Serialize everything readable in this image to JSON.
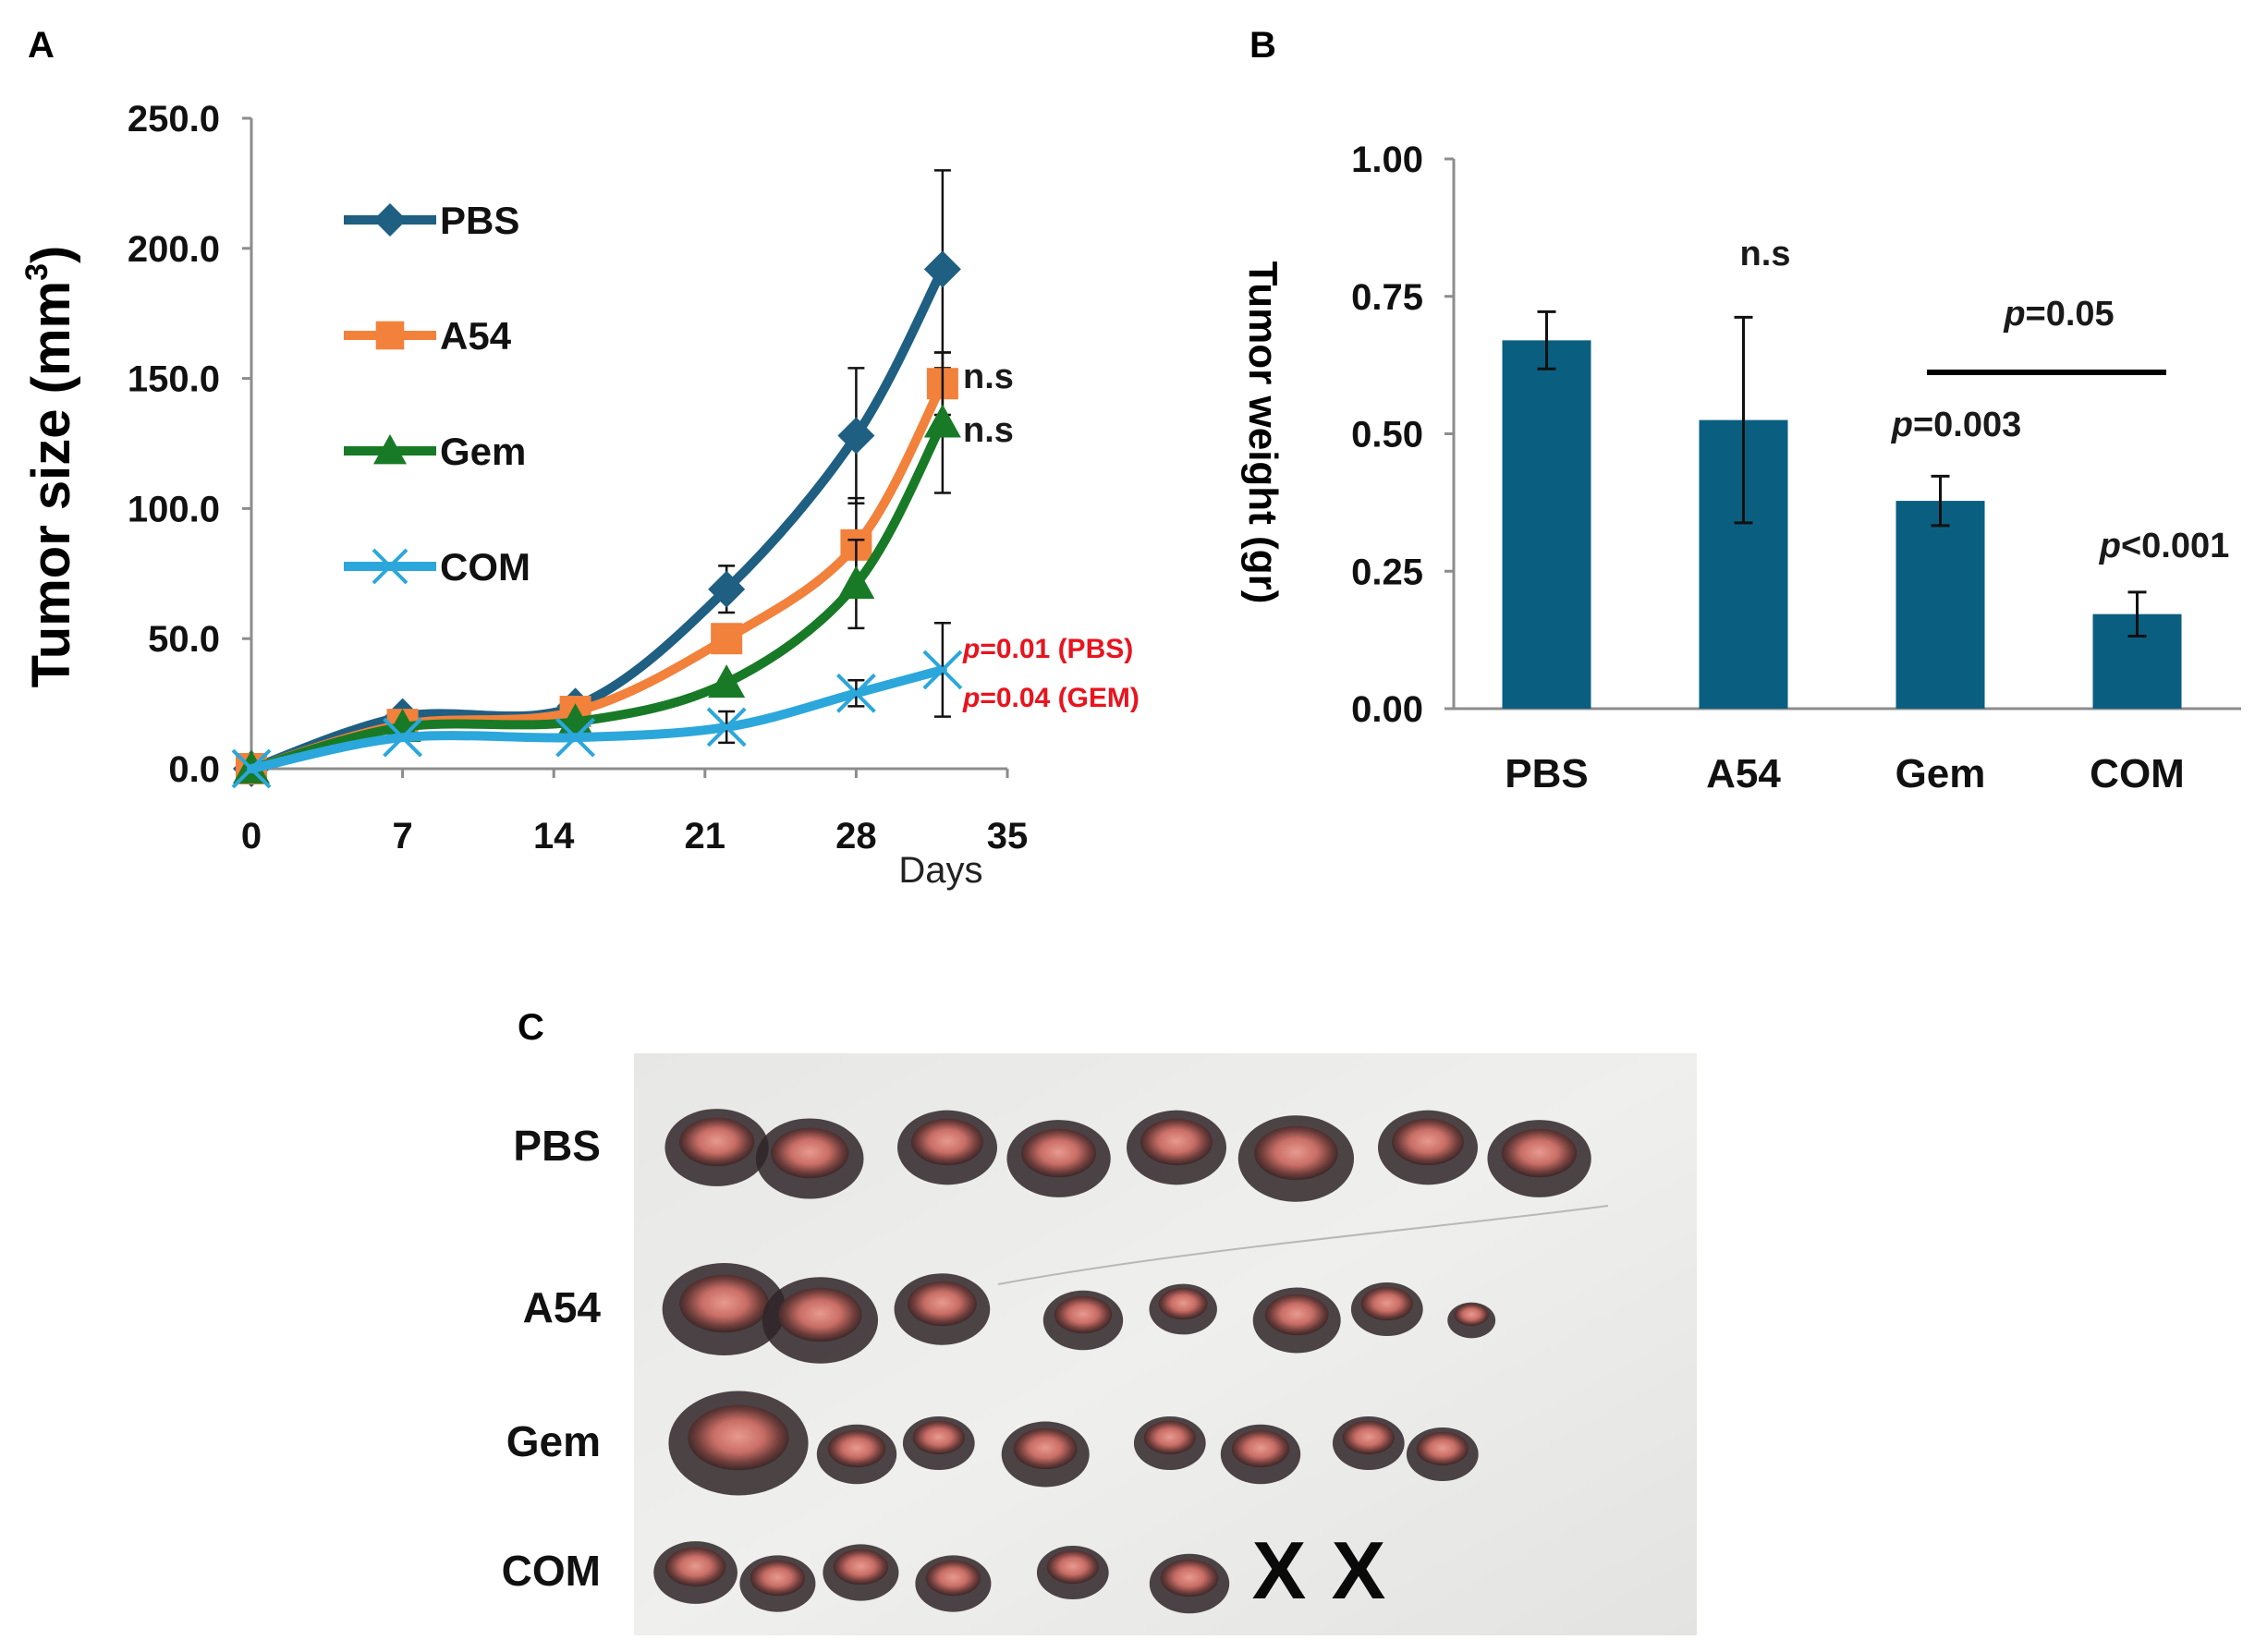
{
  "panels": {
    "a": "A",
    "b": "B",
    "c": "C"
  },
  "colors": {
    "PBS": "#1e5f82",
    "A54": "#f2813b",
    "Gem": "#187a26",
    "COM": "#2ba7db",
    "bar": "#0a5f80",
    "sig": "#e8141e"
  },
  "chart_data": [
    {
      "type": "line",
      "title": "",
      "xlabel": "Days",
      "ylabel": "Tumor size (mm",
      "ylabel_sup": "3",
      "ylabel_close": ")",
      "xlim": [
        0,
        35
      ],
      "ylim": [
        0,
        250
      ],
      "xticks": [
        "0",
        "7",
        "14",
        "21",
        "28",
        "35"
      ],
      "yticks": [
        "0.0",
        "50.0",
        "100.0",
        "150.0",
        "200.0",
        "250.0"
      ],
      "grid": false,
      "legend_position": "top-left",
      "x": [
        0,
        7,
        15,
        22,
        28,
        32
      ],
      "series": [
        {
          "name": "PBS",
          "marker": "diamond",
          "values": [
            0,
            20,
            24,
            69,
            128,
            192
          ],
          "errors": [
            0,
            0,
            0,
            9,
            26,
            38
          ],
          "annotation": ""
        },
        {
          "name": "A54",
          "marker": "square",
          "values": [
            0,
            17,
            22,
            50,
            86,
            148
          ],
          "errors": [
            0,
            0,
            0,
            0,
            18,
            12
          ],
          "annotation": "n.s"
        },
        {
          "name": "Gem",
          "marker": "triangle",
          "values": [
            0,
            16,
            18,
            33,
            71,
            133
          ],
          "errors": [
            0,
            0,
            0,
            0,
            17,
            27
          ],
          "annotation": "n.s"
        },
        {
          "name": "COM",
          "marker": "x",
          "values": [
            0,
            12,
            12,
            16,
            29,
            38
          ],
          "errors": [
            0,
            0,
            0,
            6,
            5,
            18
          ],
          "annotation": ""
        }
      ],
      "sig_labels": [
        {
          "p": "p",
          "text": "=0.01 (PBS)"
        },
        {
          "p": "p",
          "text": "=0.04 (GEM)"
        }
      ]
    },
    {
      "type": "bar",
      "title": "",
      "xlabel": "",
      "ylabel": "Tumor weight (gr)",
      "ylim": [
        0,
        1.0
      ],
      "yticks": [
        "0.00",
        "0.25",
        "0.50",
        "0.75",
        "1.00"
      ],
      "grid": false,
      "categories": [
        "PBS",
        "A54",
        "Gem",
        "COM"
      ],
      "values": [
        0.67,
        0.525,
        0.378,
        0.172
      ],
      "errors": [
        0.052,
        0.187,
        0.045,
        0.04
      ],
      "annotations": [
        {
          "p": "",
          "text": ""
        },
        {
          "p": "",
          "text": "n.s"
        },
        {
          "p": "p",
          "text": "=0.003"
        },
        {
          "p": "p",
          "text": "<0.001"
        }
      ],
      "bracket": {
        "from": "Gem",
        "to": "COM",
        "p": "p",
        "text": "=0.05"
      }
    }
  ],
  "photo": {
    "rows": [
      "PBS",
      "A54",
      "Gem",
      "COM"
    ],
    "counts": [
      8,
      8,
      8,
      6
    ],
    "marks": [
      "X",
      "X"
    ]
  }
}
